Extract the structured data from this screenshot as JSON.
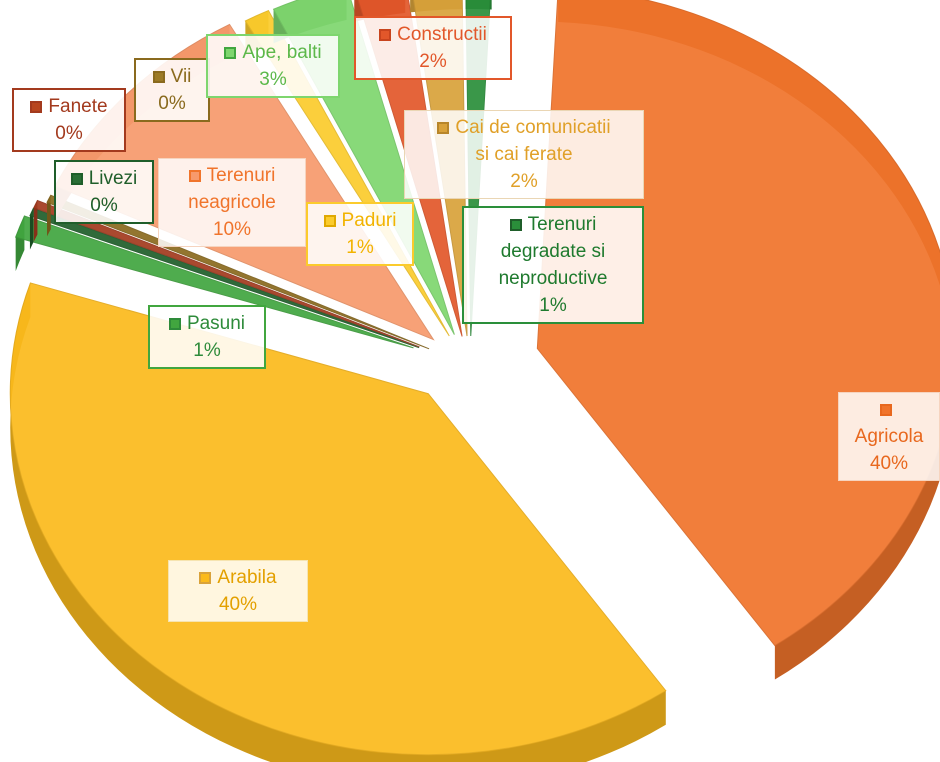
{
  "chart_data": {
    "type": "pie",
    "style": "3d exploded",
    "legend": "none",
    "slices": [
      {
        "name": "Agricola",
        "value": 40,
        "label": "40%",
        "color": "#F0742B",
        "text_color": "#E8681E"
      },
      {
        "name": "Arabila",
        "value": 40,
        "label": "40%",
        "color": "#FBBA1C",
        "text_color": "#E3A000"
      },
      {
        "name": "Pasuni",
        "value": 1,
        "label": "1%",
        "color": "#41A63F",
        "text_color": "#2E8B3A"
      },
      {
        "name": "Livezi",
        "value": 0,
        "label": "0%",
        "color": "#1F5E2A",
        "text_color": "#1F5E2A"
      },
      {
        "name": "Fanete",
        "value": 0,
        "label": "0%",
        "color": "#A33A1E",
        "text_color": "#A33A1E"
      },
      {
        "name": "Vii",
        "value": 0,
        "label": "0%",
        "color": "#8A6A1E",
        "text_color": "#8A6A1E"
      },
      {
        "name": "Terenuri neagricole",
        "value": 10,
        "label": "10%",
        "color": "#F79A6C",
        "text_color": "#F0742B"
      },
      {
        "name": "Paduri",
        "value": 1,
        "label": "1%",
        "color": "#FBCB2C",
        "text_color": "#F2B300"
      },
      {
        "name": "Ape, balti",
        "value": 3,
        "label": "3%",
        "color": "#7ED66E",
        "text_color": "#5CB84A"
      },
      {
        "name": "Constructii",
        "value": 2,
        "label": "2%",
        "color": "#E2572A",
        "text_color": "#E2572A"
      },
      {
        "name": "Cai de comunicatii si cai ferate",
        "value": 2,
        "label": "2%",
        "color": "#D9A23A",
        "text_color": "#E0A028"
      },
      {
        "name": "Terenuri degradate si neproductive",
        "value": 1,
        "label": "1%",
        "color": "#2A8F3A",
        "text_color": "#1F7A2E"
      }
    ]
  },
  "labels": {
    "agricola": {
      "line1": "Agricola",
      "pct": "40%"
    },
    "arabila": {
      "line1": "Arabila",
      "pct": "40%"
    },
    "pasuni": {
      "line1": "Pasuni",
      "pct": "1%"
    },
    "livezi": {
      "line1": "Livezi",
      "pct": "0%"
    },
    "fanete": {
      "line1": "Fanete",
      "pct": "0%"
    },
    "vii": {
      "line1": "Vii",
      "pct": "0%"
    },
    "neagricole": {
      "line1": "Terenuri",
      "line2": "neagricole",
      "pct": "10%"
    },
    "paduri": {
      "line1": "Paduri",
      "pct": "1%"
    },
    "ape": {
      "line1": "Ape, balti",
      "pct": "3%"
    },
    "constructii": {
      "line1": "Constructii",
      "pct": "2%"
    },
    "cai": {
      "line1": "Cai de comunicatii",
      "line2": "si cai ferate",
      "pct": "2%"
    },
    "degradate": {
      "line1": "Terenuri",
      "line2": "degradate si",
      "line3": "neproductive",
      "pct": "1%"
    }
  }
}
